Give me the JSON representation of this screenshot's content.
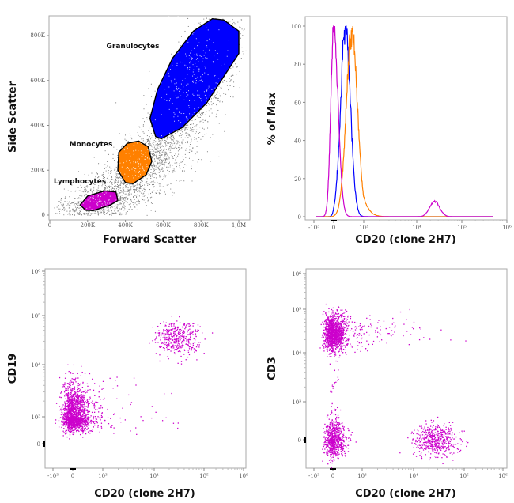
{
  "chart_data": [
    {
      "type": "scatter",
      "xlabel": "Forward Scatter",
      "ylabel": "Side Scatter",
      "x_ticks": [
        "0",
        "200K",
        "400K",
        "600K",
        "800K",
        "1,0M"
      ],
      "y_ticks": [
        "0",
        "200K",
        "400K",
        "600K",
        "800K"
      ],
      "xlim": [
        0,
        1050000
      ],
      "ylim": [
        -10000,
        880000
      ],
      "background_color": "#808080",
      "populations": [
        {
          "label": "Granulocytes",
          "color": "#0000ff",
          "center": [
            760000,
            610000
          ],
          "spread": [
            90000,
            120000
          ],
          "count": 1400,
          "gate": [
            [
              560000,
              350000
            ],
            [
              530000,
              430000
            ],
            [
              570000,
              560000
            ],
            [
              650000,
              700000
            ],
            [
              760000,
              820000
            ],
            [
              860000,
              875000
            ],
            [
              920000,
              870000
            ],
            [
              1000000,
              820000
            ],
            [
              1000000,
              720000
            ],
            [
              930000,
              630000
            ],
            [
              830000,
              500000
            ],
            [
              700000,
              390000
            ],
            [
              590000,
              340000
            ]
          ]
        },
        {
          "label": "Monocytes",
          "color": "#ff8000",
          "center": [
            450000,
            230000
          ],
          "spread": [
            45000,
            45000
          ],
          "count": 500,
          "gate": [
            [
              470000,
              330000
            ],
            [
              520000,
              305000
            ],
            [
              540000,
              240000
            ],
            [
              510000,
              180000
            ],
            [
              440000,
              140000
            ],
            [
              400000,
              145000
            ],
            [
              360000,
              200000
            ],
            [
              365000,
              280000
            ],
            [
              410000,
              320000
            ]
          ]
        },
        {
          "label": "Lymphocytes",
          "color": "#cc00cc",
          "center": [
            260000,
            60000
          ],
          "spread": [
            50000,
            18000
          ],
          "count": 400,
          "gate": [
            [
              190000,
              22000
            ],
            [
              160000,
              45000
            ],
            [
              200000,
              85000
            ],
            [
              290000,
              108000
            ],
            [
              350000,
              103000
            ],
            [
              360000,
              65000
            ],
            [
              320000,
              45000
            ],
            [
              230000,
              20000
            ]
          ]
        }
      ]
    },
    {
      "type": "line",
      "xlabel": "CD20 (clone 2H7)",
      "ylabel": "% of Max",
      "x_ticks": [
        "-10³",
        "0",
        "10³",
        "10⁴",
        "10⁵",
        "10⁶"
      ],
      "y_ticks": [
        "0",
        "20",
        "40",
        "60",
        "80",
        "100"
      ],
      "ylim": [
        0,
        100
      ],
      "series": [
        {
          "color": "#0000ff",
          "peaks": [
            {
              "center": 150,
              "height": 100,
              "width": 0.42
            }
          ]
        },
        {
          "color": "#ff8000",
          "peaks": [
            {
              "center": 300,
              "height": 97,
              "width": 0.48
            }
          ]
        },
        {
          "color": "#cc00cc",
          "peaks": [
            {
              "center": 0,
              "height": 100,
              "width": 0.38
            },
            {
              "center": 25000,
              "height": 8,
              "width": 0.22
            }
          ]
        }
      ]
    },
    {
      "type": "scatter",
      "xlabel": "CD20 (clone 2H7)",
      "ylabel": "CD19",
      "x_ticks": [
        "-10³",
        "0",
        "10³",
        "10⁴",
        "10⁵",
        "10⁶"
      ],
      "y_ticks": [
        "0",
        "10³",
        "10⁴",
        "10⁵",
        "10⁶"
      ],
      "color": "#cc00cc",
      "populations": [
        {
          "center": [
            0,
            1000
          ],
          "spread": [
            0.35,
            0.32
          ],
          "count": 1600
        },
        {
          "center": [
            28000,
            33000
          ],
          "spread": [
            0.22,
            0.18
          ],
          "count": 400
        },
        {
          "center": [
            800,
            1200
          ],
          "spread": [
            0.6,
            0.35
          ],
          "count": 120
        }
      ]
    },
    {
      "type": "scatter",
      "xlabel": "CD20 (clone 2H7)",
      "ylabel": "CD3",
      "x_ticks": [
        "-10³",
        "0",
        "10³",
        "10⁴",
        "10⁵",
        "10⁶"
      ],
      "y_ticks": [
        "0",
        "10³",
        "10⁴",
        "10⁵",
        "10⁶"
      ],
      "color": "#cc00cc",
      "populations": [
        {
          "center": [
            0,
            30000
          ],
          "spread": [
            0.3,
            0.22
          ],
          "count": 1200
        },
        {
          "center": [
            0,
            0
          ],
          "spread": [
            0.28,
            0.32
          ],
          "count": 700
        },
        {
          "center": [
            28000,
            0
          ],
          "spread": [
            0.22,
            0.25
          ],
          "count": 500
        },
        {
          "center": [
            0,
            1500
          ],
          "spread": [
            0.12,
            0.7
          ],
          "count": 60
        },
        {
          "center": [
            1500,
            30000
          ],
          "spread": [
            0.6,
            0.2
          ],
          "count": 120
        }
      ]
    }
  ]
}
